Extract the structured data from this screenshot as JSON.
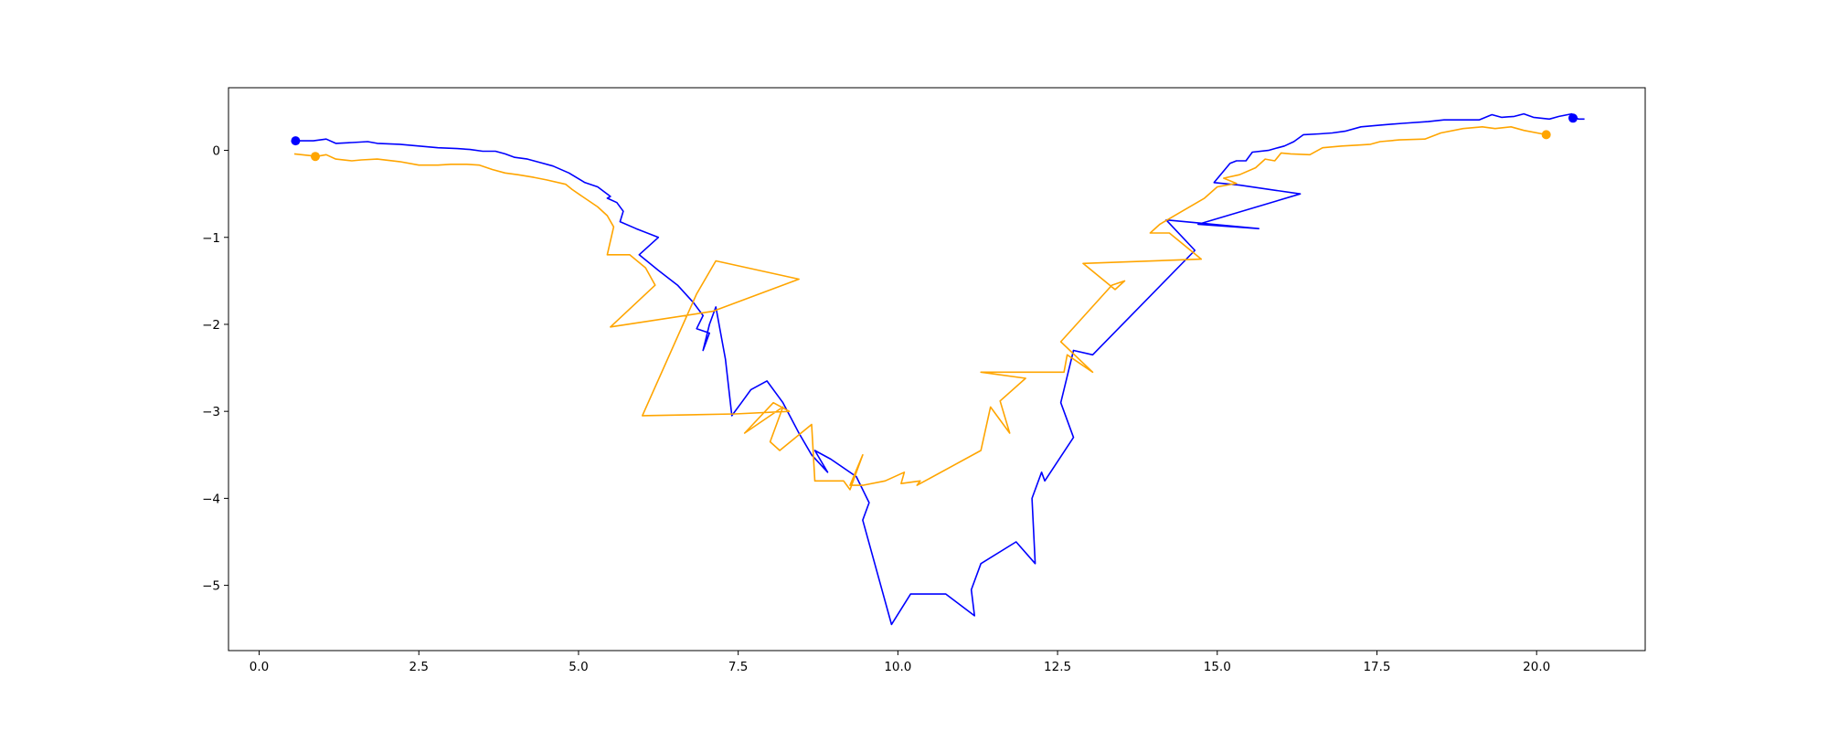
{
  "chart_data": {
    "type": "line",
    "title": "",
    "xlabel": "",
    "ylabel": "",
    "xlim": [
      -0.48,
      21.7
    ],
    "ylim": [
      -5.75,
      0.72
    ],
    "grid": false,
    "xticks": [
      0.0,
      2.5,
      5.0,
      7.5,
      10.0,
      12.5,
      15.0,
      17.5,
      20.0
    ],
    "xtick_labels": [
      "0.0",
      "2.5",
      "5.0",
      "7.5",
      "10.0",
      "12.5",
      "15.0",
      "17.5",
      "20.0"
    ],
    "yticks": [
      0,
      -1,
      -2,
      -3,
      -4,
      -5
    ],
    "ytick_labels": [
      "0",
      "−1",
      "−2",
      "−3",
      "−4",
      "−5"
    ],
    "series": [
      {
        "color": "#0000ff",
        "markers": [
          [
            0.57,
            0.11
          ],
          [
            20.57,
            0.37
          ]
        ],
        "points": [
          [
            0.57,
            0.11
          ],
          [
            0.85,
            0.11
          ],
          [
            1.05,
            0.13
          ],
          [
            1.2,
            0.08
          ],
          [
            1.45,
            0.09
          ],
          [
            1.7,
            0.1
          ],
          [
            1.85,
            0.08
          ],
          [
            2.2,
            0.07
          ],
          [
            2.5,
            0.05
          ],
          [
            2.8,
            0.03
          ],
          [
            3.1,
            0.02
          ],
          [
            3.3,
            0.01
          ],
          [
            3.5,
            -0.01
          ],
          [
            3.7,
            -0.01
          ],
          [
            3.85,
            -0.04
          ],
          [
            4.0,
            -0.08
          ],
          [
            4.2,
            -0.1
          ],
          [
            4.4,
            -0.14
          ],
          [
            4.6,
            -0.18
          ],
          [
            4.85,
            -0.26
          ],
          [
            5.1,
            -0.37
          ],
          [
            5.3,
            -0.42
          ],
          [
            5.5,
            -0.53
          ],
          [
            5.45,
            -0.55
          ],
          [
            5.6,
            -0.6
          ],
          [
            5.7,
            -0.7
          ],
          [
            5.65,
            -0.82
          ],
          [
            5.9,
            -0.9
          ],
          [
            6.25,
            -1.0
          ],
          [
            5.95,
            -1.2
          ],
          [
            6.25,
            -1.38
          ],
          [
            6.55,
            -1.55
          ],
          [
            6.8,
            -1.75
          ],
          [
            6.95,
            -1.9
          ],
          [
            6.85,
            -2.05
          ],
          [
            7.05,
            -2.1
          ],
          [
            6.95,
            -2.3
          ],
          [
            7.05,
            -2.0
          ],
          [
            7.15,
            -1.8
          ],
          [
            7.3,
            -2.4
          ],
          [
            7.4,
            -3.05
          ],
          [
            7.55,
            -2.9
          ],
          [
            7.7,
            -2.75
          ],
          [
            7.95,
            -2.65
          ],
          [
            8.2,
            -2.9
          ],
          [
            8.45,
            -3.25
          ],
          [
            8.65,
            -3.5
          ],
          [
            8.9,
            -3.7
          ],
          [
            8.7,
            -3.45
          ],
          [
            8.95,
            -3.55
          ],
          [
            9.35,
            -3.75
          ],
          [
            9.55,
            -4.05
          ],
          [
            9.45,
            -4.25
          ],
          [
            9.9,
            -5.45
          ],
          [
            10.2,
            -5.1
          ],
          [
            10.75,
            -5.1
          ],
          [
            11.2,
            -5.35
          ],
          [
            11.15,
            -5.05
          ],
          [
            11.3,
            -4.75
          ],
          [
            11.85,
            -4.5
          ],
          [
            12.15,
            -4.75
          ],
          [
            12.1,
            -4.0
          ],
          [
            12.25,
            -3.7
          ],
          [
            12.3,
            -3.8
          ],
          [
            12.75,
            -3.3
          ],
          [
            12.55,
            -2.9
          ],
          [
            12.75,
            -2.3
          ],
          [
            13.05,
            -2.35
          ],
          [
            14.65,
            -1.15
          ],
          [
            14.2,
            -0.8
          ],
          [
            15.65,
            -0.9
          ],
          [
            14.7,
            -0.85
          ],
          [
            16.3,
            -0.5
          ],
          [
            15.35,
            -0.4
          ],
          [
            14.95,
            -0.37
          ],
          [
            15.2,
            -0.15
          ],
          [
            15.3,
            -0.12
          ],
          [
            15.45,
            -0.12
          ],
          [
            15.55,
            -0.02
          ],
          [
            15.8,
            0.0
          ],
          [
            15.9,
            0.02
          ],
          [
            16.05,
            0.05
          ],
          [
            16.2,
            0.1
          ],
          [
            16.35,
            0.18
          ],
          [
            16.6,
            0.19
          ],
          [
            16.8,
            0.2
          ],
          [
            17.0,
            0.22
          ],
          [
            17.25,
            0.27
          ],
          [
            17.55,
            0.29
          ],
          [
            17.9,
            0.31
          ],
          [
            18.3,
            0.33
          ],
          [
            18.55,
            0.35
          ],
          [
            18.9,
            0.35
          ],
          [
            19.1,
            0.35
          ],
          [
            19.3,
            0.41
          ],
          [
            19.45,
            0.38
          ],
          [
            19.65,
            0.39
          ],
          [
            19.8,
            0.42
          ],
          [
            19.95,
            0.38
          ],
          [
            20.2,
            0.36
          ],
          [
            20.35,
            0.39
          ],
          [
            20.55,
            0.42
          ],
          [
            20.65,
            0.36
          ],
          [
            20.75,
            0.36
          ]
        ]
      },
      {
        "color": "#ffa500",
        "markers": [
          [
            0.88,
            -0.07
          ],
          [
            20.15,
            0.18
          ]
        ],
        "points": [
          [
            0.55,
            -0.04
          ],
          [
            0.8,
            -0.06
          ],
          [
            0.9,
            -0.07
          ],
          [
            1.05,
            -0.05
          ],
          [
            1.2,
            -0.1
          ],
          [
            1.45,
            -0.12
          ],
          [
            1.6,
            -0.11
          ],
          [
            1.85,
            -0.1
          ],
          [
            2.2,
            -0.13
          ],
          [
            2.5,
            -0.17
          ],
          [
            2.8,
            -0.17
          ],
          [
            3.0,
            -0.16
          ],
          [
            3.25,
            -0.16
          ],
          [
            3.45,
            -0.17
          ],
          [
            3.65,
            -0.22
          ],
          [
            3.85,
            -0.26
          ],
          [
            4.05,
            -0.28
          ],
          [
            4.3,
            -0.31
          ],
          [
            4.5,
            -0.34
          ],
          [
            4.8,
            -0.39
          ],
          [
            4.9,
            -0.45
          ],
          [
            5.1,
            -0.55
          ],
          [
            5.3,
            -0.65
          ],
          [
            5.45,
            -0.75
          ],
          [
            5.55,
            -0.88
          ],
          [
            5.45,
            -1.2
          ],
          [
            5.8,
            -1.2
          ],
          [
            6.05,
            -1.35
          ],
          [
            6.2,
            -1.55
          ],
          [
            5.5,
            -2.03
          ],
          [
            7.1,
            -1.85
          ],
          [
            8.45,
            -1.48
          ],
          [
            7.15,
            -1.27
          ],
          [
            6.85,
            -1.65
          ],
          [
            6.0,
            -3.05
          ],
          [
            7.45,
            -3.03
          ],
          [
            8.3,
            -3.0
          ],
          [
            8.05,
            -2.9
          ],
          [
            7.6,
            -3.25
          ],
          [
            8.2,
            -2.95
          ],
          [
            8.0,
            -3.35
          ],
          [
            8.15,
            -3.45
          ],
          [
            8.65,
            -3.15
          ],
          [
            8.7,
            -3.8
          ],
          [
            9.15,
            -3.8
          ],
          [
            9.25,
            -3.9
          ],
          [
            9.45,
            -3.5
          ],
          [
            9.25,
            -3.85
          ],
          [
            9.45,
            -3.85
          ],
          [
            9.8,
            -3.8
          ],
          [
            10.1,
            -3.7
          ],
          [
            10.05,
            -3.83
          ],
          [
            10.35,
            -3.8
          ],
          [
            10.3,
            -3.85
          ],
          [
            11.3,
            -3.45
          ],
          [
            11.45,
            -2.95
          ],
          [
            11.75,
            -3.25
          ],
          [
            11.6,
            -2.88
          ],
          [
            12.0,
            -2.62
          ],
          [
            11.3,
            -2.55
          ],
          [
            12.6,
            -2.55
          ],
          [
            12.65,
            -2.35
          ],
          [
            13.05,
            -2.55
          ],
          [
            12.55,
            -2.2
          ],
          [
            13.35,
            -1.55
          ],
          [
            13.55,
            -1.5
          ],
          [
            13.4,
            -1.6
          ],
          [
            12.9,
            -1.3
          ],
          [
            14.75,
            -1.25
          ],
          [
            14.5,
            -1.1
          ],
          [
            14.25,
            -0.95
          ],
          [
            13.95,
            -0.95
          ],
          [
            14.1,
            -0.85
          ],
          [
            14.45,
            -0.7
          ],
          [
            14.8,
            -0.55
          ],
          [
            15.0,
            -0.42
          ],
          [
            15.3,
            -0.38
          ],
          [
            15.1,
            -0.32
          ],
          [
            15.35,
            -0.28
          ],
          [
            15.6,
            -0.2
          ],
          [
            15.75,
            -0.1
          ],
          [
            15.9,
            -0.12
          ],
          [
            16.0,
            -0.03
          ],
          [
            16.15,
            -0.04
          ],
          [
            16.45,
            -0.05
          ],
          [
            16.65,
            0.03
          ],
          [
            16.95,
            0.05
          ],
          [
            17.2,
            0.06
          ],
          [
            17.4,
            0.07
          ],
          [
            17.55,
            0.1
          ],
          [
            17.85,
            0.12
          ],
          [
            18.25,
            0.13
          ],
          [
            18.5,
            0.2
          ],
          [
            18.85,
            0.25
          ],
          [
            19.15,
            0.27
          ],
          [
            19.35,
            0.25
          ],
          [
            19.6,
            0.27
          ],
          [
            19.8,
            0.23
          ],
          [
            20.15,
            0.18
          ]
        ]
      }
    ]
  }
}
